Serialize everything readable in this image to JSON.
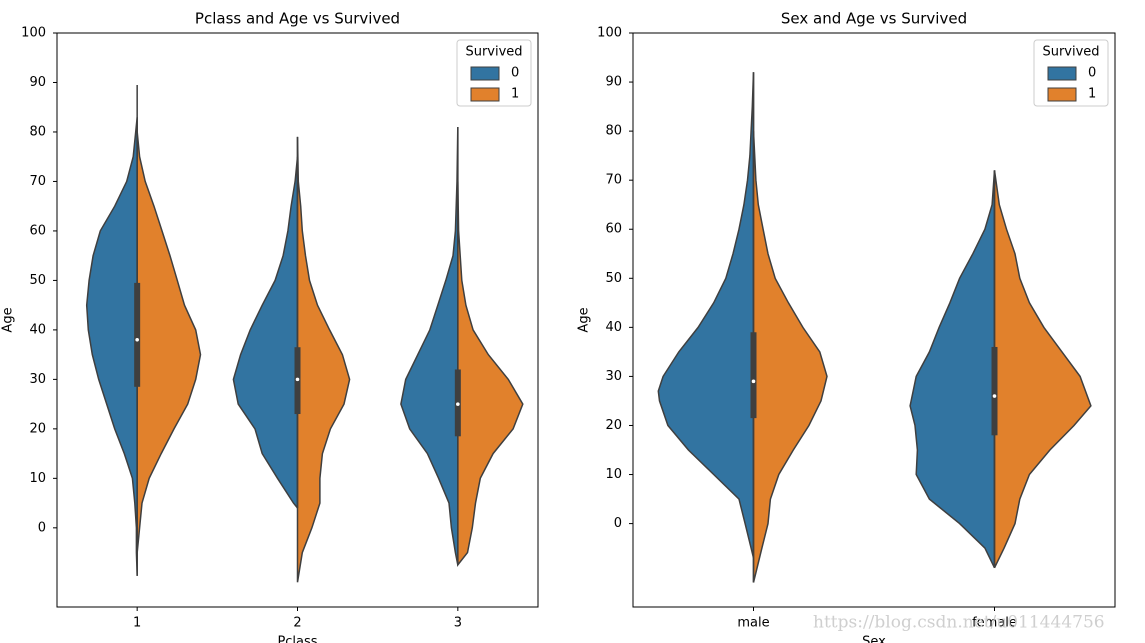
{
  "chart_data": [
    {
      "type": "violin",
      "title": "Pclass and Age vs Survived",
      "xlabel": "Pclass",
      "ylabel": "Age",
      "categories": [
        "1",
        "2",
        "3"
      ],
      "ylim": [
        -16,
        100
      ],
      "yticks": [
        0,
        10,
        20,
        30,
        40,
        50,
        60,
        70,
        80,
        90,
        100
      ],
      "legend_title": "Survived",
      "legend": "upper right",
      "outline": "#3f3f3f",
      "series": [
        {
          "name": "0",
          "color": "#3274a1",
          "violins": [
            {
              "y": [
                -9.7,
                -5,
                0,
                5,
                10,
                15,
                20,
                25,
                30,
                35,
                40,
                45,
                50,
                55,
                60,
                65,
                70,
                75,
                83
              ],
              "width": [
                0,
                0.01,
                0.01,
                0.03,
                0.06,
                0.16,
                0.28,
                0.38,
                0.48,
                0.56,
                0.61,
                0.63,
                0.6,
                0.55,
                0.46,
                0.28,
                0.13,
                0.05,
                0
              ]
            },
            {
              "y": [
                4,
                5,
                10,
                15,
                20,
                25,
                30,
                35,
                40,
                45,
                50,
                55,
                60,
                65,
                70,
                75
              ],
              "width": [
                0,
                0.05,
                0.25,
                0.44,
                0.53,
                0.74,
                0.8,
                0.71,
                0.59,
                0.44,
                0.28,
                0.18,
                0.12,
                0.08,
                0.03,
                0
              ]
            },
            {
              "y": [
                -7.5,
                -5,
                0,
                5,
                10,
                15,
                20,
                25,
                30,
                35,
                40,
                45,
                50,
                55,
                60,
                70,
                81
              ],
              "width": [
                0,
                0.03,
                0.08,
                0.11,
                0.24,
                0.38,
                0.6,
                0.71,
                0.65,
                0.5,
                0.35,
                0.25,
                0.15,
                0.06,
                0.03,
                0.01,
                0
              ]
            }
          ]
        },
        {
          "name": "1",
          "color": "#e1812c",
          "violins": [
            {
              "y": [
                -5,
                0,
                5,
                10,
                15,
                20,
                25,
                30,
                35,
                40,
                45,
                50,
                55,
                60,
                65,
                70,
                75,
                80
              ],
              "width": [
                0,
                0.03,
                0.06,
                0.15,
                0.3,
                0.46,
                0.63,
                0.73,
                0.79,
                0.73,
                0.59,
                0.5,
                0.41,
                0.31,
                0.21,
                0.1,
                0.03,
                0
              ]
            },
            {
              "y": [
                -11,
                -5,
                0,
                5,
                10,
                15,
                20,
                25,
                30,
                35,
                40,
                45,
                50,
                55,
                60,
                65,
                70,
                79
              ],
              "width": [
                0,
                0.06,
                0.18,
                0.28,
                0.28,
                0.31,
                0.41,
                0.58,
                0.65,
                0.56,
                0.4,
                0.25,
                0.15,
                0.1,
                0.06,
                0.04,
                0.01,
                0
              ]
            },
            {
              "y": [
                -7.5,
                -5,
                0,
                5,
                10,
                15,
                20,
                25,
                30,
                35,
                40,
                45,
                50,
                55,
                60,
                70
              ],
              "width": [
                0,
                0.12,
                0.18,
                0.22,
                0.28,
                0.44,
                0.69,
                0.81,
                0.63,
                0.38,
                0.19,
                0.1,
                0.05,
                0.03,
                0.01,
                0
              ]
            }
          ]
        }
      ],
      "boxes": [
        {
          "whisker": [
            -9.7,
            89.5
          ],
          "quartiles": [
            28.5,
            49.5
          ],
          "median": 38
        },
        {
          "whisker": [
            4,
            79
          ],
          "quartiles": [
            23,
            36.5
          ],
          "median": 30
        },
        {
          "whisker": [
            -7.5,
            81
          ],
          "quartiles": [
            18.5,
            32
          ],
          "median": 25
        }
      ]
    },
    {
      "type": "violin",
      "title": "Sex and Age vs Survived",
      "xlabel": "Sex",
      "ylabel": "Age",
      "categories": [
        "male",
        "female"
      ],
      "ylim": [
        -17,
        100
      ],
      "yticks": [
        0,
        10,
        20,
        30,
        40,
        50,
        60,
        70,
        80,
        90,
        100
      ],
      "legend_title": "Survived",
      "legend": "upper right",
      "outline": "#3f3f3f",
      "series": [
        {
          "name": "0",
          "color": "#3274a1",
          "violins": [
            {
              "y": [
                -7,
                -5,
                0,
                5,
                10,
                15,
                20,
                25,
                27,
                30,
                35,
                40,
                45,
                50,
                55,
                60,
                65,
                70,
                75,
                80,
                85,
                92
              ],
              "width": [
                0,
                0.02,
                0.07,
                0.12,
                0.33,
                0.54,
                0.71,
                0.78,
                0.79,
                0.75,
                0.62,
                0.46,
                0.33,
                0.23,
                0.17,
                0.12,
                0.08,
                0.05,
                0.03,
                0.02,
                0.01,
                0
              ]
            },
            {
              "y": [
                -9,
                -5,
                0,
                5,
                10,
                15,
                20,
                24,
                30,
                35,
                40,
                45,
                50,
                55,
                60,
                65,
                72
              ],
              "width": [
                0,
                0.08,
                0.29,
                0.54,
                0.65,
                0.64,
                0.66,
                0.7,
                0.65,
                0.54,
                0.46,
                0.37,
                0.29,
                0.18,
                0.08,
                0.02,
                0
              ]
            }
          ]
        },
        {
          "name": "1",
          "color": "#e1812c",
          "violins": [
            {
              "y": [
                -12,
                -10,
                -5,
                0,
                5,
                10,
                15,
                20,
                25,
                30,
                35,
                40,
                45,
                50,
                55,
                60,
                65,
                70,
                80
              ],
              "width": [
                0,
                0.02,
                0.07,
                0.12,
                0.14,
                0.21,
                0.33,
                0.46,
                0.56,
                0.61,
                0.55,
                0.41,
                0.29,
                0.18,
                0.12,
                0.08,
                0.04,
                0.02,
                0
              ]
            },
            {
              "y": [
                -9,
                -5,
                0,
                5,
                10,
                15,
                20,
                24,
                30,
                35,
                40,
                45,
                50,
                55,
                60,
                65,
                72
              ],
              "width": [
                0,
                0.08,
                0.17,
                0.21,
                0.29,
                0.46,
                0.66,
                0.8,
                0.71,
                0.56,
                0.41,
                0.29,
                0.21,
                0.17,
                0.1,
                0.04,
                0
              ]
            }
          ]
        }
      ],
      "boxes": [
        {
          "whisker": [
            -12,
            92
          ],
          "quartiles": [
            21.5,
            39
          ],
          "median": 29
        },
        {
          "whisker": [
            -9,
            72
          ],
          "quartiles": [
            18,
            36
          ],
          "median": 26
        }
      ]
    }
  ],
  "watermark": "https://blog.csdn.net/u011444756"
}
